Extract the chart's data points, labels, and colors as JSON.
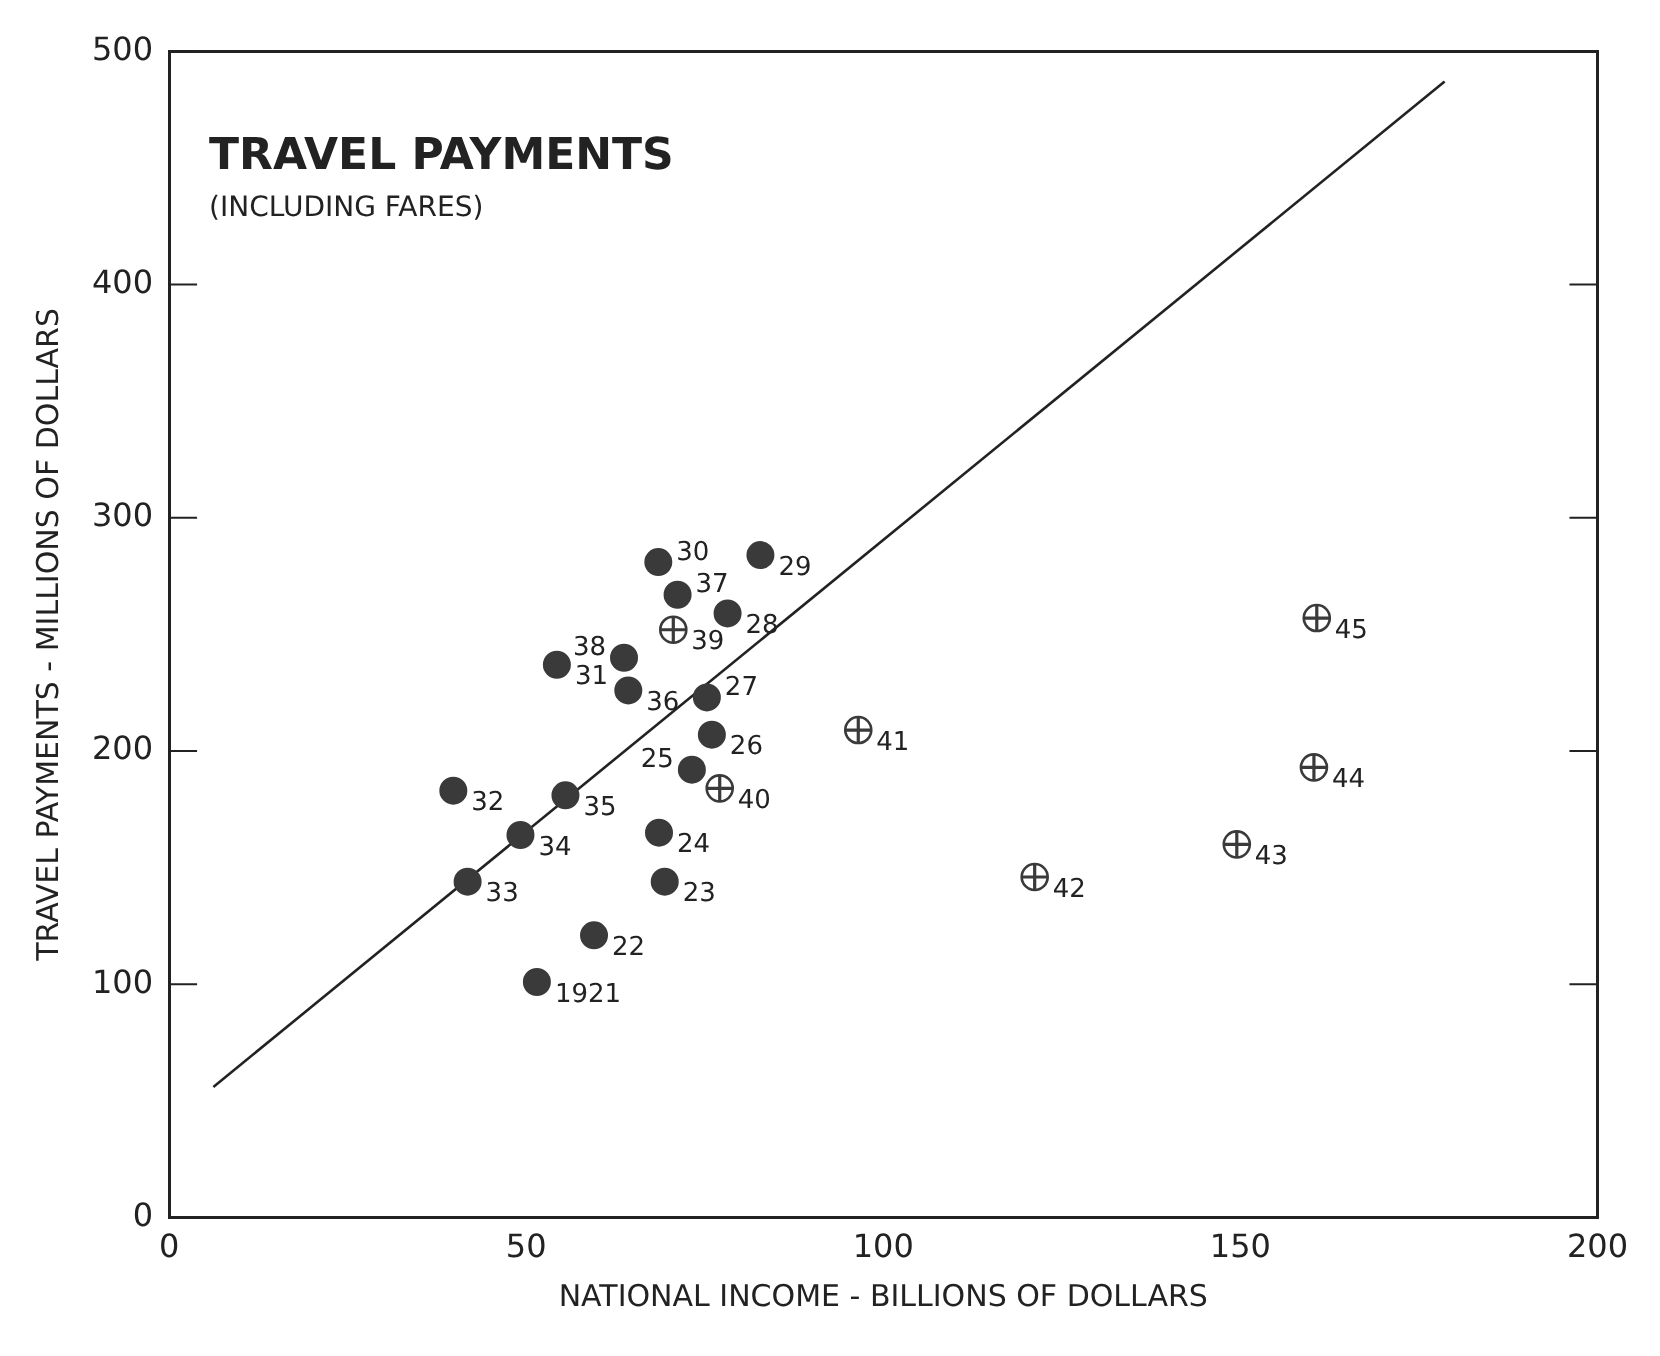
{
  "chart_data": {
    "type": "scatter",
    "title": "TRAVEL PAYMENTS",
    "subtitle": "(INCLUDING FARES)",
    "xlabel": "NATIONAL INCOME - BILLIONS OF DOLLARS",
    "ylabel": "TRAVEL PAYMENTS - MILLIONS OF DOLLARS",
    "xlim": [
      0,
      200
    ],
    "xticks": [
      0,
      50,
      100,
      150,
      200
    ],
    "ylim": [
      0,
      500
    ],
    "yticks": [
      0,
      100,
      200,
      300,
      400,
      500
    ],
    "grid": false,
    "legend": false,
    "marker": "circle",
    "series": [
      {
        "color": "#3a3a3a",
        "x": [
          51.5,
          59.5,
          69.4,
          68.6,
          73.2,
          76,
          75.3,
          78.2,
          82.8,
          68.5,
          54.3,
          39.8,
          41.8,
          49.2,
          55.5,
          64.3,
          71.2,
          63.7
        ],
        "values": [
          101,
          121,
          144,
          165,
          192,
          207,
          223,
          259,
          284,
          281,
          237,
          183,
          144,
          164,
          181,
          226,
          267,
          240
        ]
      },
      {
        "type": "scatter",
        "color": "#3a3a3a",
        "marker": "cross",
        "x": [
          70.6,
          77.1,
          96.5,
          121.2,
          149.5,
          160.3,
          160.7
        ],
        "values": [
          252,
          184,
          209,
          146,
          160,
          193,
          257
        ]
      },
      {
        "type": "line",
        "color": "#222222",
        "marker": "none",
        "line_style": "solid",
        "x": [
          6.2,
          178.6
        ],
        "values": [
          56,
          487
        ]
      }
    ],
    "annotations": [
      {
        "text": "1921",
        "x": 51.5,
        "y": 101
      },
      {
        "text": "22",
        "x": 59.5,
        "y": 121
      },
      {
        "text": "23",
        "x": 69.4,
        "y": 144
      },
      {
        "text": "24",
        "x": 68.6,
        "y": 165
      },
      {
        "text": "25",
        "x": 73.2,
        "y": 192
      },
      {
        "text": "26",
        "x": 76,
        "y": 207
      },
      {
        "text": "27",
        "x": 75.3,
        "y": 223
      },
      {
        "text": "28",
        "x": 78.2,
        "y": 259
      },
      {
        "text": "29",
        "x": 82.8,
        "y": 284
      },
      {
        "text": "30",
        "x": 68.5,
        "y": 281
      },
      {
        "text": "31",
        "x": 54.3,
        "y": 237
      },
      {
        "text": "32",
        "x": 39.8,
        "y": 183
      },
      {
        "text": "33",
        "x": 41.8,
        "y": 144
      },
      {
        "text": "34",
        "x": 49.2,
        "y": 164
      },
      {
        "text": "35",
        "x": 55.5,
        "y": 181
      },
      {
        "text": "36",
        "x": 64.3,
        "y": 226
      },
      {
        "text": "37",
        "x": 71.2,
        "y": 267
      },
      {
        "text": "38",
        "x": 63.7,
        "y": 240
      },
      {
        "text": "39",
        "x": 70.6,
        "y": 252
      },
      {
        "text": "40",
        "x": 77.1,
        "y": 184
      },
      {
        "text": "41",
        "x": 96.5,
        "y": 209
      },
      {
        "text": "42",
        "x": 121.2,
        "y": 146
      },
      {
        "text": "43",
        "x": 149.5,
        "y": 160
      },
      {
        "text": "44",
        "x": 160.3,
        "y": 193
      },
      {
        "text": "45",
        "x": 160.7,
        "y": 257
      }
    ]
  }
}
